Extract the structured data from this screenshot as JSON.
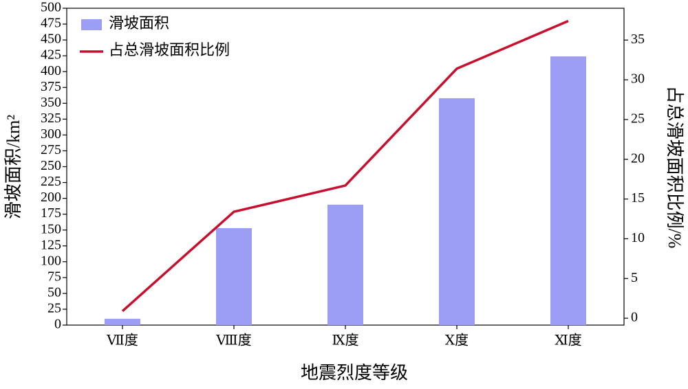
{
  "chart_data": {
    "type": "bar",
    "x_label": "地震烈度等级",
    "y_label": "滑坡面积/km²",
    "y2_label": "占总滑坡面积比例/%",
    "categories": [
      "Ⅶ度",
      "Ⅷ度",
      "Ⅸ度",
      "Ⅹ度",
      "Ⅺ度"
    ],
    "series": [
      {
        "name": "滑坡面积",
        "type": "bar",
        "color": "#9b9ef4",
        "values": [
          10,
          153,
          190,
          358,
          424
        ]
      },
      {
        "name": "占总滑坡面积比例",
        "type": "line",
        "axis": "y2",
        "color": "#c8102e",
        "values": [
          0.9,
          13.4,
          16.7,
          31.4,
          37.4
        ]
      }
    ],
    "ylim": [
      0,
      500
    ],
    "yticks": [
      0,
      25,
      50,
      75,
      100,
      125,
      150,
      175,
      200,
      225,
      250,
      275,
      300,
      325,
      350,
      375,
      400,
      425,
      450,
      475,
      500
    ],
    "y2lim": [
      -0.86,
      39
    ],
    "y2ticks": [
      0,
      5,
      10,
      15,
      20,
      25,
      30,
      35
    ],
    "legend": "upper-left"
  }
}
